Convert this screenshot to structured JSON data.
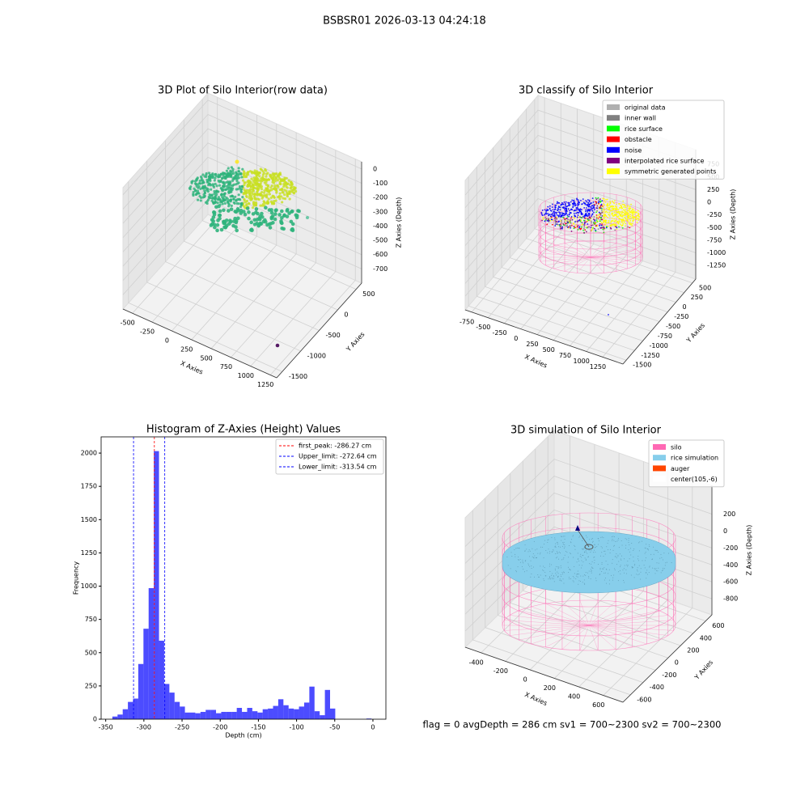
{
  "title": "BSBSR01 2026-03-13 04:24:18",
  "footer": "flag = 0     avgDepth = 286 cm  sv1 = 700~2300  sv2 = 700~2300",
  "chart_data": [
    {
      "type": "scatter3d",
      "title": "3D Plot of Silo Interior(row data)",
      "xlabel": "X Axies",
      "ylabel": "Y Axies",
      "zlabel": "Z Axies (Depth)",
      "xlim": [
        -620,
        1330
      ],
      "xticks": [
        -500,
        -250,
        0,
        250,
        500,
        750,
        1000,
        1250
      ],
      "ylim": [
        -1650,
        650
      ],
      "yticks": [
        -1500,
        -1000,
        -500,
        0,
        500
      ],
      "zlim": [
        -800,
        50
      ],
      "zticks": [
        -700,
        -600,
        -500,
        -400,
        -300,
        -200,
        -100,
        0
      ]
    },
    {
      "type": "scatter3d",
      "title": "3D classify of Silo Interior",
      "xlabel": "X Axies",
      "ylabel": "Y Axies",
      "zlabel": "Z Axies (Depth)",
      "xlim": [
        -850,
        1560
      ],
      "xticks": [
        -750,
        -500,
        -250,
        0,
        250,
        500,
        750,
        1000,
        1250
      ],
      "ylim": [
        -1600,
        600
      ],
      "yticks": [
        -1500,
        -1250,
        -1000,
        -750,
        -500,
        -250,
        0,
        250,
        500
      ],
      "zlim": [
        -1520,
        1040
      ],
      "zticks": [
        -1250,
        -1000,
        -750,
        -500,
        -250,
        0,
        250,
        500,
        750
      ],
      "legend": [
        {
          "name": "original data",
          "color": "#b0b0b0"
        },
        {
          "name": "inner wall",
          "color": "#808080"
        },
        {
          "name": "rice surface",
          "color": "#00ff00"
        },
        {
          "name": "obstacle",
          "color": "#ff0000"
        },
        {
          "name": "noise",
          "color": "#0000ff"
        },
        {
          "name": "interpolated rice surface",
          "color": "#800080"
        },
        {
          "name": "symmetric generated points",
          "color": "#ffff00"
        }
      ]
    },
    {
      "type": "histogram",
      "title": "Histogram of Z-Axies (Height) Values",
      "xlabel": "Depth (cm)",
      "ylabel": "Frequency",
      "color": "#0000ff",
      "bins": [
        -341.3,
        -334.51,
        -327.72,
        -320.93,
        -314.14,
        -307.35,
        -300.56,
        -293.77,
        -286.98,
        -280.19,
        -273.4,
        -266.61,
        -259.82,
        -253.03,
        -246.24,
        -239.45,
        -232.66,
        -225.87,
        -219.08,
        -212.29,
        -205.5,
        -198.71,
        -191.92,
        -185.13,
        -178.34,
        -171.55,
        -164.76,
        -157.97,
        -151.18,
        -144.39,
        -137.6,
        -130.81,
        -124.02,
        -117.23,
        -110.44,
        -103.65,
        -96.86,
        -90.07,
        -83.28,
        -76.49,
        -69.7,
        -62.91,
        -56.12,
        -49.33,
        -42.54,
        -35.75,
        -28.96,
        -22.17,
        -15.38,
        -8.59,
        -1.8
      ],
      "values": [
        20,
        35,
        75,
        130,
        155,
        415,
        680,
        985,
        2015,
        590,
        265,
        200,
        130,
        95,
        50,
        50,
        45,
        55,
        70,
        70,
        45,
        55,
        55,
        55,
        85,
        55,
        85,
        60,
        50,
        75,
        80,
        100,
        150,
        105,
        80,
        75,
        95,
        125,
        245,
        60,
        30,
        220,
        80,
        0,
        0,
        0,
        0,
        0,
        0,
        5
      ],
      "xlim": [
        -356,
        17
      ],
      "xticks": [
        -350,
        -300,
        -250,
        -200,
        -150,
        -100,
        -50,
        0
      ],
      "ylim": [
        0,
        2122
      ],
      "yticks": [
        0,
        250,
        500,
        750,
        1000,
        1250,
        1500,
        1750,
        2000
      ],
      "vlines": [
        {
          "label": "first_peak: -286.27 cm",
          "value": -286.27,
          "color": "#ff0000"
        },
        {
          "label": "Upper_limit: -272.64 cm",
          "value": -272.64,
          "color": "#0000ff"
        },
        {
          "label": "Lower_limit: -313.54 cm",
          "value": -313.54,
          "color": "#0000ff"
        }
      ]
    },
    {
      "type": "scatter3d",
      "title": "3D simulation of Silo Interior",
      "xlabel": "X Axies",
      "ylabel": "Y Axies",
      "zlabel": "Z Axies (Depth)",
      "xlim": [
        -530,
        760
      ],
      "xticks": [
        -400,
        -200,
        0,
        200,
        400,
        600
      ],
      "ylim": [
        -720,
        700
      ],
      "yticks": [
        -600,
        -400,
        -200,
        0,
        200,
        400,
        600
      ],
      "zlim": [
        -990,
        540
      ],
      "zticks": [
        -800,
        -600,
        -400,
        -200,
        0,
        200
      ],
      "legend": [
        {
          "name": "silo",
          "color": "#ff69b4"
        },
        {
          "name": "rice simulation",
          "color": "#87ceeb"
        },
        {
          "name": "auger",
          "color": "#ff4500"
        },
        {
          "name": "center(105,-6)",
          "color": "#ffffff"
        }
      ]
    }
  ]
}
